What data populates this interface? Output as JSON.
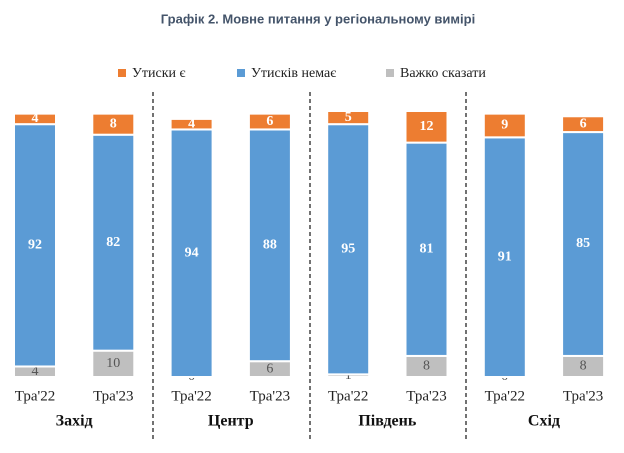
{
  "chart_data": {
    "type": "stacked_bar",
    "title": "Графік 2. Мовне питання у регіональному вимірі",
    "categories": [
      "Тра'22",
      "Тра'23",
      "Тра'22",
      "Тра'23",
      "Тра'22",
      "Тра'23",
      "Тра'22",
      "Тра'23"
    ],
    "groups": [
      "Захід",
      "Центр",
      "Південь",
      "Схід"
    ],
    "series": [
      {
        "name": "Важко сказати",
        "color": "#bfbfbf",
        "values": [
          4,
          10,
          0,
          6,
          1,
          8,
          0,
          8
        ]
      },
      {
        "name": "Утисків немає",
        "color": "#5b9bd5",
        "values": [
          92,
          82,
          94,
          88,
          95,
          81,
          91,
          85
        ]
      },
      {
        "name": "Утиски є",
        "color": "#ed7d31",
        "values": [
          4,
          8,
          4,
          6,
          5,
          12,
          9,
          6
        ]
      }
    ],
    "legend_order": [
      2,
      1,
      0
    ]
  }
}
